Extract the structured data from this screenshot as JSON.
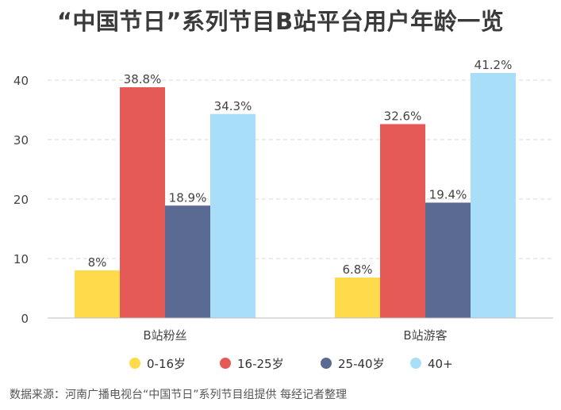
{
  "title": "“中国节日”系列节目B站平台用户年龄一览",
  "source": "数据来源：河南广播电视台“中国节日”系列节目组提供 每经记者整理",
  "chart_data": {
    "type": "bar",
    "categories": [
      "B站粉丝",
      "B站游客"
    ],
    "series": [
      {
        "name": "0-16岁",
        "values": [
          8,
          6.8
        ],
        "labels": [
          "8%",
          "6.8%"
        ],
        "color": "#FFDA4A"
      },
      {
        "name": "16-25岁",
        "values": [
          38.8,
          32.6
        ],
        "labels": [
          "38.8%",
          "32.6%"
        ],
        "color": "#E55A57"
      },
      {
        "name": "25-40岁",
        "values": [
          18.9,
          19.4
        ],
        "labels": [
          "18.9%",
          "19.4%"
        ],
        "color": "#5A6A93"
      },
      {
        "name": "40+",
        "values": [
          34.3,
          41.2
        ],
        "labels": [
          "34.3%",
          "41.2%"
        ],
        "color": "#A9DEF9"
      }
    ],
    "yticks": [
      0,
      10,
      20,
      30,
      40
    ],
    "ylim": [
      0,
      45
    ],
    "grid": true,
    "legend": "bottom"
  }
}
